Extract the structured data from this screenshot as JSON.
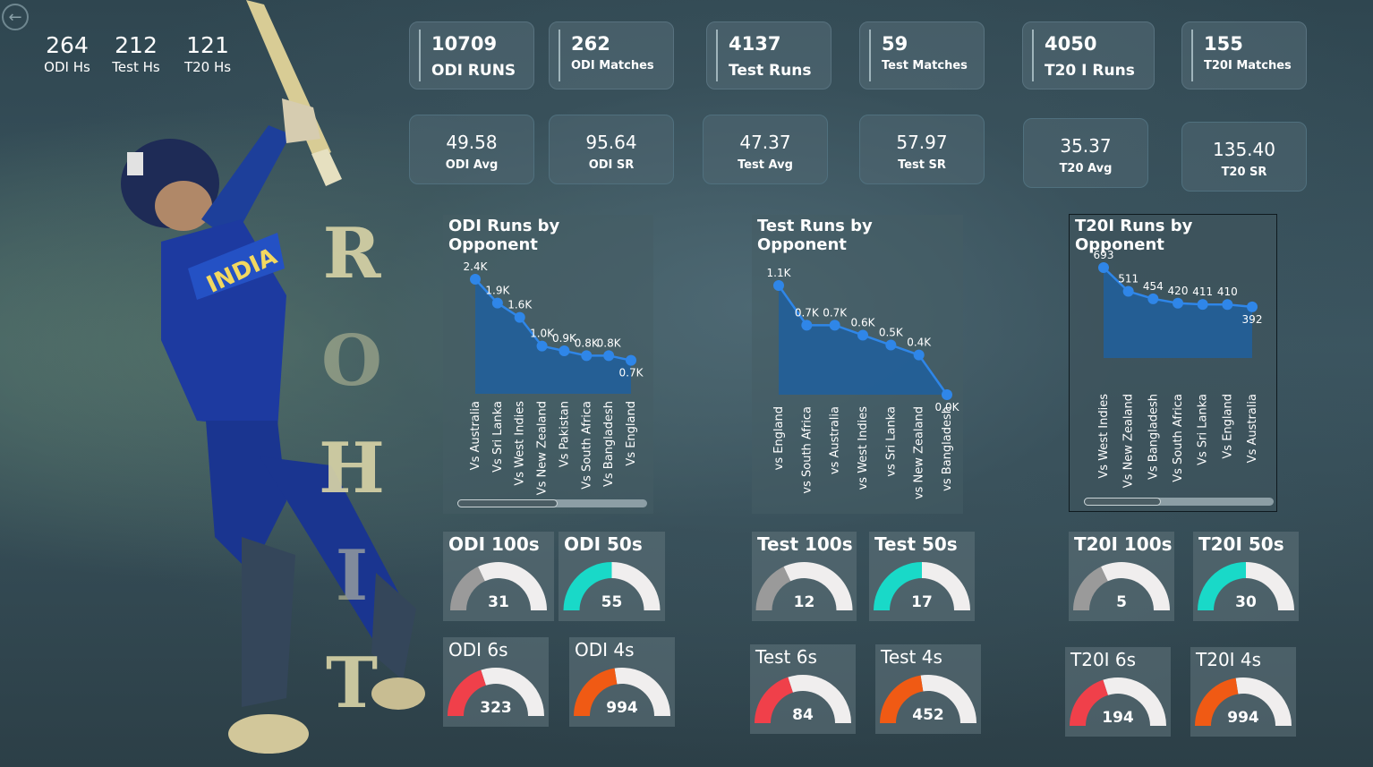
{
  "nav": {
    "back_icon": "back-arrow-icon"
  },
  "highest_scores": [
    {
      "value": "264",
      "label": "ODI Hs"
    },
    {
      "value": "212",
      "label": "Test Hs"
    },
    {
      "value": "121",
      "label": "T20 Hs"
    }
  ],
  "name_letters": [
    "R",
    "O",
    "H",
    "I",
    "T"
  ],
  "kpis": [
    {
      "value": "10709",
      "label": "ODI RUNS",
      "small": false
    },
    {
      "value": "262",
      "label": "ODI Matches",
      "small": true
    },
    {
      "value": "4137",
      "label": "Test Runs",
      "small": false
    },
    {
      "value": "59",
      "label": "Test Matches",
      "small": true
    },
    {
      "value": "4050",
      "label": "T20 I Runs",
      "small": false
    },
    {
      "value": "155",
      "label": "T20I Matches",
      "small": true
    }
  ],
  "stats": [
    {
      "value": "49.58",
      "label": "ODI Avg"
    },
    {
      "value": "95.64",
      "label": "ODI SR"
    },
    {
      "value": "47.37",
      "label": "Test Avg"
    },
    {
      "value": "57.97",
      "label": "Test SR"
    },
    {
      "value": "35.37",
      "label": "T20 Avg"
    },
    {
      "value": "135.40",
      "label": "T20 SR"
    }
  ],
  "chart_data": [
    {
      "type": "area",
      "title": "ODI Runs by Opponent",
      "categories": [
        "Vs Australia",
        "Vs Sri Lanka",
        "Vs West Indies",
        "Vs New Zealand",
        "Vs Pakistan",
        "Vs South Africa",
        "Vs Bangladesh",
        "Vs England"
      ],
      "values": [
        2400,
        1900,
        1600,
        1000,
        900,
        800,
        800,
        700
      ],
      "data_labels": [
        "2.4K",
        "1.9K",
        "1.6K",
        "1.0K",
        "0.9K",
        "0.8K",
        "0.8K",
        "0.7K"
      ],
      "ylim": [
        0,
        2400
      ],
      "scrollbar_fraction": 0.5
    },
    {
      "type": "area",
      "title": "Test Runs by Opponent",
      "categories": [
        "vs England",
        "vs South Africa",
        "vs Australia",
        "vs West Indies",
        "vs Sri Lanka",
        "vs New Zealand",
        "vs Bangladesh"
      ],
      "values": [
        1100,
        700,
        700,
        600,
        500,
        400,
        0
      ],
      "data_labels": [
        "1.1K",
        "0.7K",
        "0.7K",
        "0.6K",
        "0.5K",
        "0.4K",
        "0.0K"
      ],
      "ylim": [
        0,
        1100
      ]
    },
    {
      "type": "area",
      "title": "T20I Runs by Opponent",
      "categories": [
        "Vs West Indies",
        "Vs New Zealand",
        "Vs Bangladesh",
        "Vs South Africa",
        "Vs Sri Lanka",
        "Vs England",
        "Vs Australia"
      ],
      "values": [
        693,
        511,
        454,
        420,
        411,
        410,
        392
      ],
      "data_labels": [
        "693",
        "511",
        "454",
        "420",
        "411",
        "410",
        "392"
      ],
      "ylim": [
        0,
        693
      ],
      "scrollbar_fraction": 0.4
    }
  ],
  "gauges": [
    {
      "title": "ODI 100s",
      "value": "31",
      "fraction": 0.36,
      "color": "#9a9a9a"
    },
    {
      "title": "ODI 50s",
      "value": "55",
      "fraction": 0.5,
      "color": "#19d9c8"
    },
    {
      "title": "ODI 6s",
      "value": "323",
      "fraction": 0.4,
      "color": "#f0404a"
    },
    {
      "title": "ODI 4s",
      "value": "994",
      "fraction": 0.45,
      "color": "#f05a14"
    },
    {
      "title": "Test 100s",
      "value": "12",
      "fraction": 0.36,
      "color": "#9a9a9a"
    },
    {
      "title": "Test 50s",
      "value": "17",
      "fraction": 0.5,
      "color": "#19d9c8"
    },
    {
      "title": "Test 6s",
      "value": "84",
      "fraction": 0.4,
      "color": "#f0404a"
    },
    {
      "title": "Test 4s",
      "value": "452",
      "fraction": 0.45,
      "color": "#f05a14"
    },
    {
      "title": "T20I 100s",
      "value": "5",
      "fraction": 0.36,
      "color": "#9a9a9a"
    },
    {
      "title": "T20I 50s",
      "value": "30",
      "fraction": 0.5,
      "color": "#19d9c8"
    },
    {
      "title": "T20I 6s",
      "value": "194",
      "fraction": 0.4,
      "color": "#f0404a"
    },
    {
      "title": "T20I 4s",
      "value": "994",
      "fraction": 0.45,
      "color": "#f05a14"
    }
  ],
  "colors": {
    "accent": "#2f86e8",
    "area_fill": "#215f9a"
  }
}
